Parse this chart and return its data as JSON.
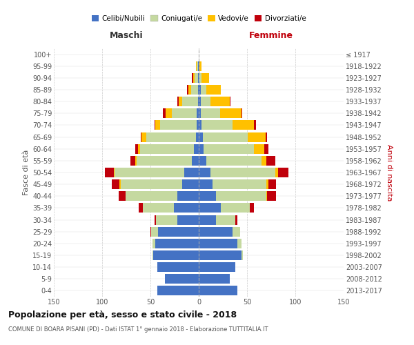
{
  "age_groups": [
    "0-4",
    "5-9",
    "10-14",
    "15-19",
    "20-24",
    "25-29",
    "30-34",
    "35-39",
    "40-44",
    "45-49",
    "50-54",
    "55-59",
    "60-64",
    "65-69",
    "70-74",
    "75-79",
    "80-84",
    "85-89",
    "90-94",
    "95-99",
    "100+"
  ],
  "birth_years": [
    "2013-2017",
    "2008-2012",
    "2003-2007",
    "1998-2002",
    "1993-1997",
    "1988-1992",
    "1983-1987",
    "1978-1982",
    "1973-1977",
    "1968-1972",
    "1963-1967",
    "1958-1962",
    "1953-1957",
    "1948-1952",
    "1943-1947",
    "1938-1942",
    "1933-1937",
    "1928-1932",
    "1923-1927",
    "1918-1922",
    "≤ 1917"
  ],
  "male": {
    "celibi": [
      43,
      35,
      43,
      47,
      45,
      42,
      22,
      26,
      22,
      17,
      15,
      7,
      5,
      3,
      2,
      2,
      1,
      1,
      1,
      1,
      0
    ],
    "coniugati": [
      0,
      0,
      0,
      1,
      3,
      7,
      22,
      32,
      54,
      64,
      72,
      57,
      56,
      51,
      38,
      26,
      16,
      7,
      3,
      1,
      0
    ],
    "vedovi": [
      0,
      0,
      0,
      0,
      0,
      0,
      0,
      0,
      0,
      1,
      1,
      2,
      2,
      5,
      5,
      6,
      4,
      3,
      2,
      1,
      0
    ],
    "divorziati": [
      0,
      0,
      0,
      0,
      0,
      1,
      2,
      4,
      7,
      8,
      9,
      5,
      3,
      1,
      1,
      3,
      1,
      1,
      1,
      0,
      0
    ]
  },
  "female": {
    "nubili": [
      40,
      32,
      38,
      44,
      40,
      35,
      18,
      23,
      18,
      14,
      12,
      8,
      5,
      4,
      3,
      2,
      2,
      2,
      1,
      1,
      0
    ],
    "coniugate": [
      0,
      0,
      0,
      2,
      4,
      8,
      20,
      30,
      52,
      56,
      67,
      57,
      52,
      47,
      32,
      20,
      10,
      6,
      2,
      0,
      0
    ],
    "vedove": [
      0,
      0,
      0,
      0,
      0,
      0,
      0,
      0,
      1,
      2,
      3,
      5,
      11,
      18,
      22,
      22,
      20,
      15,
      8,
      2,
      0
    ],
    "divorziate": [
      0,
      0,
      0,
      0,
      0,
      0,
      2,
      4,
      9,
      8,
      11,
      9,
      4,
      2,
      2,
      1,
      1,
      0,
      0,
      0,
      0
    ]
  },
  "colors": {
    "celibi": "#4472C4",
    "coniugati": "#c5d9a0",
    "vedovi": "#ffc000",
    "divorziati": "#c0000b"
  },
  "xlim": 150,
  "title": "Popolazione per età, sesso e stato civile - 2018",
  "subtitle": "COMUNE DI BOARA PISANI (PD) - Dati ISTAT 1° gennaio 2018 - Elaborazione TUTTITALIA.IT",
  "ylabel_left": "Fasce di età",
  "ylabel_right": "Anni di nascita",
  "xlabel_left": "Maschi",
  "xlabel_right": "Femmine"
}
